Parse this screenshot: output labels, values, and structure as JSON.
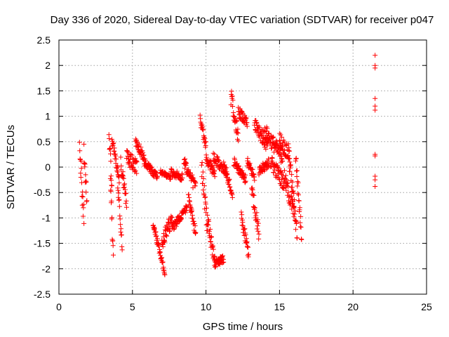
{
  "chart_data": {
    "type": "scatter",
    "title": "Day 336 of 2020, Sidereal Day-to-day VTEC variation (SDTVAR) for receiver p047",
    "xlabel": "GPS time / hours",
    "ylabel": "SDTVAR / TECUs",
    "xlim": [
      0,
      25
    ],
    "ylim": [
      -2.5,
      2.5
    ],
    "xticks": [
      0,
      5,
      10,
      15,
      20,
      25
    ],
    "yticks": [
      -2.5,
      -2,
      -1.5,
      -1,
      -0.5,
      0,
      0.5,
      1,
      1.5,
      2,
      2.5
    ],
    "grid": true,
    "marker": "+",
    "series": [
      {
        "name": "p047",
        "color": "#ff0000",
        "segments": [
          {
            "x": [
              1.4,
              1.7
            ],
            "y": [
              0.45,
              -1.1
            ],
            "jitter": 0.55
          },
          {
            "x": [
              1.7,
              1.9
            ],
            "y": [
              0.3,
              -0.65
            ],
            "jitter": 0.4
          },
          {
            "x": [
              3.4,
              3.6
            ],
            "y": [
              0.65,
              -0.3
            ],
            "jitter": 0.3
          },
          {
            "x": [
              3.5,
              3.7
            ],
            "y": [
              -0.2,
              -1.85
            ],
            "jitter": 0.35
          },
          {
            "x": [
              3.6,
              4.1
            ],
            "y": [
              0.55,
              -0.2
            ],
            "jitter": 0.25
          },
          {
            "x": [
              4.0,
              4.3
            ],
            "y": [
              -0.3,
              -1.6
            ],
            "jitter": 0.25
          },
          {
            "x": [
              4.2,
              4.6
            ],
            "y": [
              0.05,
              -0.7
            ],
            "jitter": 0.3
          },
          {
            "x": [
              4.6,
              5.3
            ],
            "y": [
              0.2,
              0.0
            ],
            "jitter": 0.3
          },
          {
            "x": [
              5.2,
              5.8
            ],
            "y": [
              0.5,
              0.2
            ],
            "jitter": 0.2
          },
          {
            "x": [
              5.8,
              6.7
            ],
            "y": [
              0.1,
              -0.2
            ],
            "jitter": 0.15
          },
          {
            "x": [
              6.4,
              7.2
            ],
            "y": [
              -1.1,
              -2.1
            ],
            "jitter": 0.15
          },
          {
            "x": [
              7.0,
              7.7
            ],
            "y": [
              -1.5,
              -1.0
            ],
            "jitter": 0.3
          },
          {
            "x": [
              6.9,
              7.6
            ],
            "y": [
              -0.1,
              -0.2
            ],
            "jitter": 0.1
          },
          {
            "x": [
              7.6,
              8.4
            ],
            "y": [
              -0.1,
              -0.2
            ],
            "jitter": 0.15
          },
          {
            "x": [
              7.7,
              8.7
            ],
            "y": [
              -1.2,
              -0.8
            ],
            "jitter": 0.15
          },
          {
            "x": [
              8.5,
              9.3
            ],
            "y": [
              0.1,
              -0.4
            ],
            "jitter": 0.25
          },
          {
            "x": [
              8.8,
              9.3
            ],
            "y": [
              -0.6,
              -1.3
            ],
            "jitter": 0.2
          },
          {
            "x": [
              9.6,
              10.0
            ],
            "y": [
              0.95,
              0.4
            ],
            "jitter": 0.2
          },
          {
            "x": [
              9.7,
              10.1
            ],
            "y": [
              0.0,
              -1.2
            ],
            "jitter": 0.45
          },
          {
            "x": [
              10.1,
              10.6
            ],
            "y": [
              -1.0,
              -1.9
            ],
            "jitter": 0.3
          },
          {
            "x": [
              10.6,
              11.2
            ],
            "y": [
              -1.9,
              -1.8
            ],
            "jitter": 0.15
          },
          {
            "x": [
              10.0,
              10.6
            ],
            "y": [
              0.2,
              -0.15
            ],
            "jitter": 0.2
          },
          {
            "x": [
              10.5,
              11.4
            ],
            "y": [
              0.2,
              -0.1
            ],
            "jitter": 0.2
          },
          {
            "x": [
              11.2,
              11.8
            ],
            "y": [
              0.0,
              -0.5
            ],
            "jitter": 0.2
          },
          {
            "x": [
              11.7,
              12.2
            ],
            "y": [
              1.4,
              0.6
            ],
            "jitter": 0.35
          },
          {
            "x": [
              11.9,
              12.7
            ],
            "y": [
              0.1,
              -0.25
            ],
            "jitter": 0.2
          },
          {
            "x": [
              12.2,
              12.8
            ],
            "y": [
              1.1,
              0.85
            ],
            "jitter": 0.2
          },
          {
            "x": [
              12.4,
              12.9
            ],
            "y": [
              -1.0,
              -1.7
            ],
            "jitter": 0.25
          },
          {
            "x": [
              12.8,
              13.3
            ],
            "y": [
              0.1,
              -0.2
            ],
            "jitter": 0.2
          },
          {
            "x": [
              13.1,
              13.6
            ],
            "y": [
              -0.4,
              -1.3
            ],
            "jitter": 0.3
          },
          {
            "x": [
              13.3,
              14.2
            ],
            "y": [
              0.9,
              0.4
            ],
            "jitter": 0.3
          },
          {
            "x": [
              13.6,
              14.3
            ],
            "y": [
              -0.1,
              0.1
            ],
            "jitter": 0.2
          },
          {
            "x": [
              14.0,
              15.2
            ],
            "y": [
              0.7,
              0.2
            ],
            "jitter": 0.3
          },
          {
            "x": [
              14.4,
              15.3
            ],
            "y": [
              0.1,
              -0.3
            ],
            "jitter": 0.3
          },
          {
            "x": [
              15.0,
              15.7
            ],
            "y": [
              0.55,
              0.2
            ],
            "jitter": 0.3
          },
          {
            "x": [
              15.3,
              16.0
            ],
            "y": [
              -0.2,
              -0.9
            ],
            "jitter": 0.35
          },
          {
            "x": [
              15.6,
              16.2
            ],
            "y": [
              0.3,
              -1.3
            ],
            "jitter": 0.4
          },
          {
            "x": [
              16.1,
              16.5
            ],
            "y": [
              0.2,
              -1.35
            ],
            "jitter": 0.35
          }
        ],
        "points": [
          [
            21.5,
            2.2
          ],
          [
            21.5,
            2.0
          ],
          [
            21.5,
            1.95
          ],
          [
            21.5,
            1.35
          ],
          [
            21.5,
            1.2
          ],
          [
            21.5,
            1.12
          ],
          [
            21.5,
            0.25
          ],
          [
            21.5,
            0.22
          ],
          [
            21.5,
            -0.18
          ],
          [
            21.5,
            -0.25
          ],
          [
            21.5,
            -0.38
          ]
        ]
      }
    ]
  }
}
